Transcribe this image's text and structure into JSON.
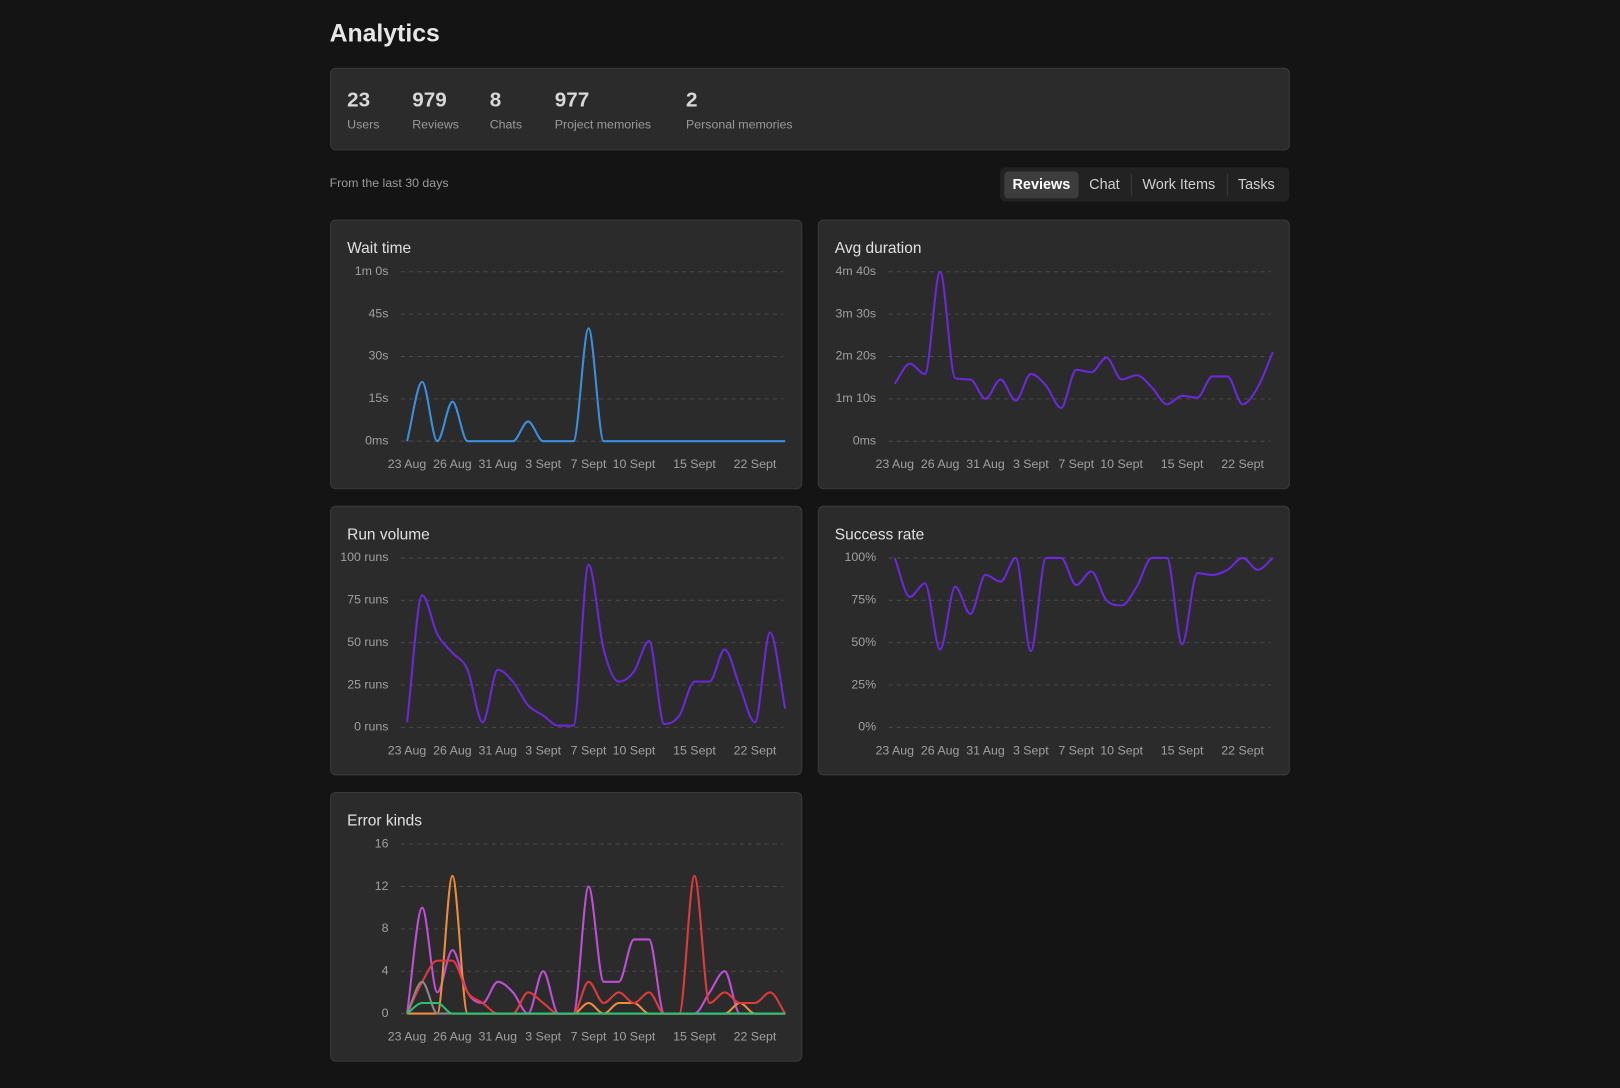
{
  "header": {
    "title": "Analytics"
  },
  "stats": [
    {
      "value": 23,
      "label": "Users"
    },
    {
      "value": 979,
      "label": "Reviews"
    },
    {
      "value": 8,
      "label": "Chats"
    },
    {
      "value": 977,
      "label": "Project memories"
    },
    {
      "value": 2,
      "label": "Personal memories"
    }
  ],
  "note": "From the last 30 days",
  "tabs": [
    "Reviews",
    "Chat",
    "Work Items",
    "Tasks"
  ],
  "chart_data": [
    {
      "type": "line",
      "title": "Wait time",
      "categories": [
        "23 Aug",
        null,
        null,
        "26 Aug",
        null,
        null,
        "31 Aug",
        null,
        null,
        "3 Sept",
        null,
        null,
        "7 Sept",
        null,
        null,
        "10 Sept",
        null,
        null,
        null,
        "15 Sept",
        null,
        null,
        null,
        "22 Sept",
        null,
        null
      ],
      "ylim": [
        0,
        60
      ],
      "yticks": [
        {
          "value": 0,
          "label": "0ms"
        },
        {
          "value": 15,
          "label": "15s"
        },
        {
          "value": 30,
          "label": "30s"
        },
        {
          "value": 45,
          "label": "45s"
        },
        {
          "value": 60,
          "label": "1m 0s"
        }
      ],
      "grid": true,
      "series": [
        {
          "color": "#3b8fe0",
          "values": [
            0,
            21,
            0,
            14,
            0,
            0,
            0,
            0,
            7,
            0,
            0,
            0,
            40,
            0,
            0,
            0,
            0,
            0,
            0,
            0,
            0,
            0,
            0,
            0,
            0,
            0
          ]
        }
      ]
    },
    {
      "type": "line",
      "title": "Avg duration",
      "categories": [
        "23 Aug",
        null,
        null,
        "26 Aug",
        null,
        null,
        "31 Aug",
        null,
        null,
        "3 Sept",
        null,
        null,
        "7 Sept",
        null,
        null,
        "10 Sept",
        null,
        null,
        null,
        "15 Sept",
        null,
        null,
        null,
        "22 Sept",
        null,
        null
      ],
      "ylim": [
        0,
        280
      ],
      "yticks": [
        {
          "value": 0,
          "label": "0ms"
        },
        {
          "value": 70,
          "label": "1m 10s"
        },
        {
          "value": 140,
          "label": "2m 20s"
        },
        {
          "value": 210,
          "label": "3m 30s"
        },
        {
          "value": 280,
          "label": "4m 40s"
        }
      ],
      "grid": true,
      "series": [
        {
          "color": "#6d28d9",
          "values": [
            95,
            128,
            111,
            280,
            104,
            102,
            70,
            102,
            67,
            111,
            92,
            55,
            118,
            114,
            138,
            102,
            109,
            89,
            61,
            75,
            72,
            107,
            107,
            61,
            89,
            147
          ]
        }
      ]
    },
    {
      "type": "line",
      "title": "Run volume",
      "categories": [
        "23 Aug",
        null,
        null,
        "26 Aug",
        null,
        null,
        "31 Aug",
        null,
        null,
        "3 Sept",
        null,
        null,
        "7 Sept",
        null,
        null,
        "10 Sept",
        null,
        null,
        null,
        "15 Sept",
        null,
        null,
        null,
        "22 Sept",
        null,
        null
      ],
      "ylim": [
        0,
        100
      ],
      "yticks": [
        {
          "value": 0,
          "label": "0 runs"
        },
        {
          "value": 25,
          "label": "25 runs"
        },
        {
          "value": 50,
          "label": "50 runs"
        },
        {
          "value": 75,
          "label": "75 runs"
        },
        {
          "value": 100,
          "label": "100 runs"
        }
      ],
      "grid": true,
      "series": [
        {
          "color": "#6d28d9",
          "values": [
            3,
            78,
            55,
            44,
            34,
            3,
            34,
            27,
            13,
            7,
            1,
            1,
            96,
            46,
            27,
            33,
            51,
            2,
            7,
            27,
            27,
            46,
            24,
            3,
            56,
            11
          ]
        }
      ]
    },
    {
      "type": "line",
      "title": "Success rate",
      "categories": [
        "23 Aug",
        null,
        null,
        "26 Aug",
        null,
        null,
        "31 Aug",
        null,
        null,
        "3 Sept",
        null,
        null,
        "7 Sept",
        null,
        null,
        "10 Sept",
        null,
        null,
        null,
        "15 Sept",
        null,
        null,
        null,
        "22 Sept",
        null,
        null
      ],
      "ylim": [
        0,
        100
      ],
      "yticks": [
        {
          "value": 0,
          "label": "0%"
        },
        {
          "value": 25,
          "label": "25%"
        },
        {
          "value": 50,
          "label": "50%"
        },
        {
          "value": 75,
          "label": "75%"
        },
        {
          "value": 100,
          "label": "100%"
        }
      ],
      "grid": true,
      "series": [
        {
          "color": "#6d28d9",
          "values": [
            100,
            77,
            85,
            46,
            83,
            67,
            90,
            86,
            100,
            45,
            100,
            100,
            84,
            92,
            75,
            72,
            83,
            100,
            100,
            49,
            91,
            90,
            93,
            100,
            93,
            100
          ]
        }
      ]
    },
    {
      "type": "line",
      "title": "Error kinds",
      "categories": [
        "23 Aug",
        null,
        null,
        "26 Aug",
        null,
        null,
        "31 Aug",
        null,
        null,
        "3 Sept",
        null,
        null,
        "7 Sept",
        null,
        null,
        "10 Sept",
        null,
        null,
        null,
        "15 Sept",
        null,
        null,
        null,
        "22 Sept",
        null,
        null
      ],
      "ylim": [
        0,
        16
      ],
      "yticks": [
        0,
        4,
        8,
        12,
        16
      ],
      "grid": true,
      "series": [
        {
          "color": "#c04fd8",
          "values": [
            0,
            10,
            2,
            6,
            2,
            1,
            3,
            2,
            0,
            4,
            0,
            0,
            12,
            3,
            3,
            7,
            7,
            0,
            0,
            0,
            2,
            4,
            0,
            0,
            0,
            0
          ]
        },
        {
          "color": "#f08c3a",
          "values": [
            0,
            0,
            0,
            13,
            0,
            0,
            0,
            0,
            0,
            0,
            0,
            0,
            1,
            0,
            1,
            1,
            0,
            0,
            0,
            0,
            0,
            0,
            1,
            0,
            0,
            0
          ]
        },
        {
          "color": "#e03b3b",
          "values": [
            0,
            3,
            5,
            5,
            2,
            1,
            0,
            0,
            2,
            1,
            0,
            0,
            3,
            1,
            2,
            1,
            2,
            0,
            0,
            13,
            1,
            2,
            1,
            1,
            2,
            0
          ]
        },
        {
          "color": "#888888",
          "values": [
            0,
            3,
            0,
            0,
            0,
            0,
            0,
            0,
            0,
            0,
            0,
            0,
            0,
            0,
            0,
            0,
            0,
            0,
            0,
            0,
            0,
            0,
            0,
            0,
            0,
            0
          ]
        },
        {
          "color": "#2fbf71",
          "values": [
            0,
            1,
            1,
            0,
            0,
            0,
            0,
            0,
            0,
            0,
            0,
            0,
            0,
            0,
            0,
            0,
            0,
            0,
            0,
            0,
            0,
            0,
            0,
            0,
            0,
            0
          ]
        }
      ]
    }
  ]
}
